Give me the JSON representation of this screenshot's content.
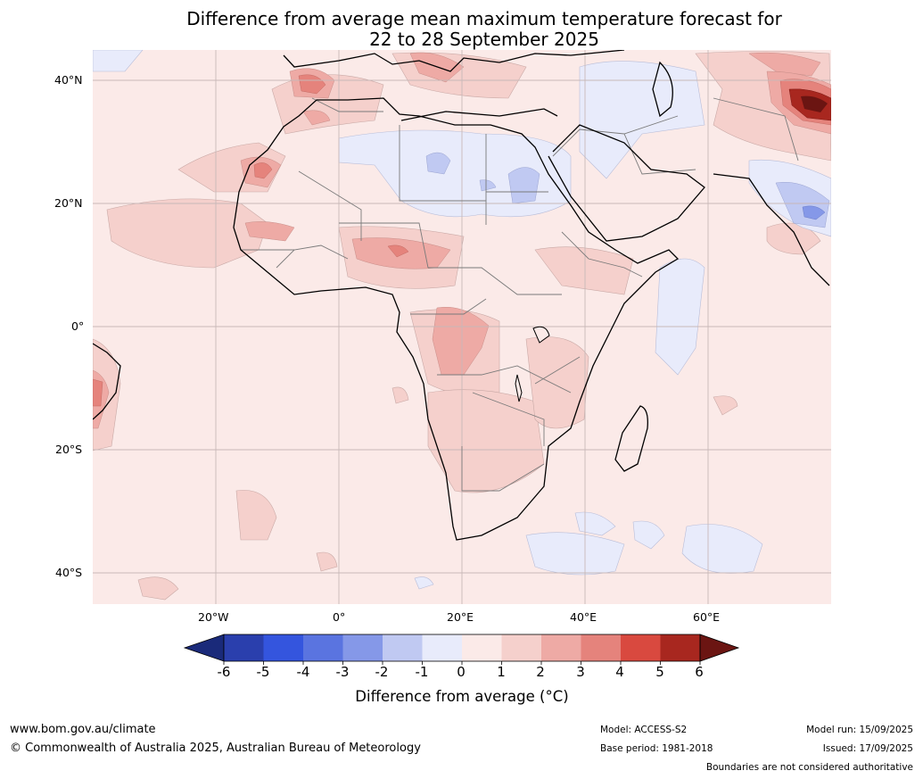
{
  "title": {
    "line1": "Difference from average mean maximum temperature forecast for",
    "line2": "22 to 28 September 2025"
  },
  "axes": {
    "lat_labels": [
      "40°N",
      "20°N",
      "0°",
      "20°S",
      "40°S"
    ],
    "lon_labels": [
      "20°W",
      "0°",
      "20°E",
      "40°E",
      "60°E"
    ]
  },
  "colorbar": {
    "ticks": [
      "-6",
      "-5",
      "-4",
      "-3",
      "-2",
      "-1",
      "0",
      "1",
      "2",
      "3",
      "4",
      "5",
      "6"
    ],
    "colors": [
      "#1a2a7a",
      "#2a3fad",
      "#3455de",
      "#5a74e0",
      "#8598e8",
      "#c0c9f2",
      "#e8ebfb",
      "#fbeae8",
      "#f5d0cc",
      "#eeaaa5",
      "#e5837c",
      "#d9493f",
      "#a8271f",
      "#6b1512"
    ],
    "title": "Difference from average ($^\\circ$C)",
    "title_display": "Difference from average (°C)"
  },
  "footer": {
    "website": "www.bom.gov.au/climate",
    "copyright": "© Commonwealth of Australia 2025, Australian Bureau of Meteorology",
    "model": "Model: ACCESS-S2",
    "base_period": "Base period: 1981-2018",
    "model_run": "Model run: 15/09/2025",
    "issued": "Issued: 17/09/2025",
    "disclaimer": "Boundaries are not considered authoritative"
  },
  "map": {
    "background_color": "#fbeae8",
    "land_outline_color": "#000000",
    "border_color": "#7a7a7a",
    "grid_color": "#c8b8b8"
  }
}
